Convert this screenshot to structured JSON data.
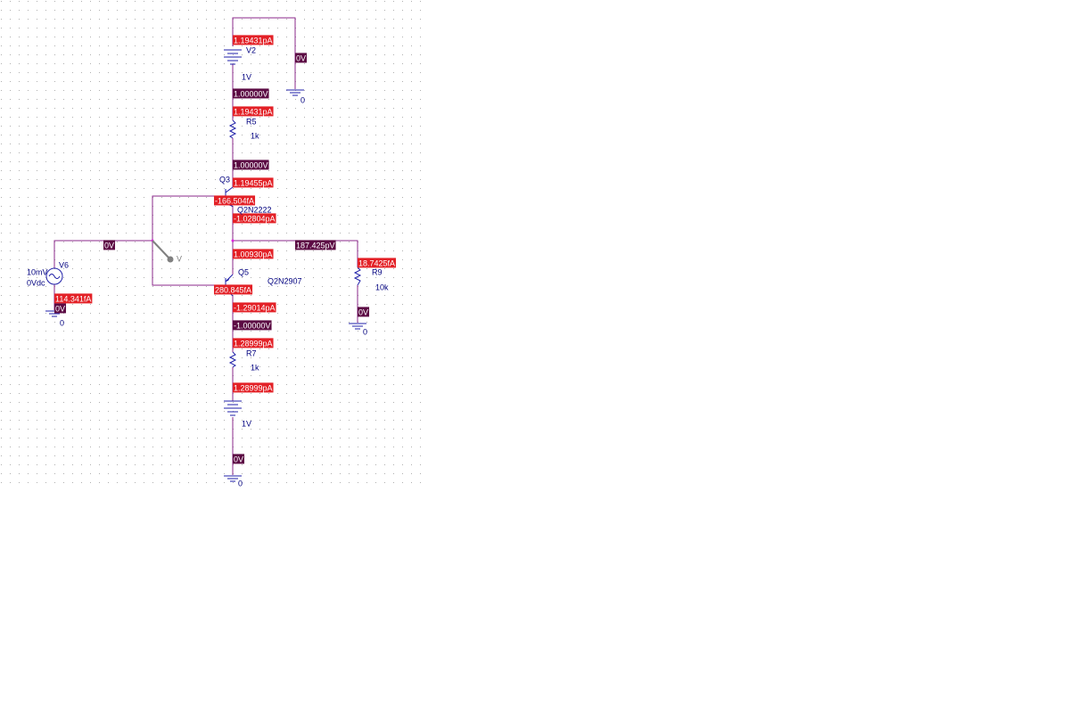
{
  "currents": [
    "1.19431pA",
    "1.19431pA",
    "1.19455pA",
    "-166.504fA",
    "-1.02804pA",
    "1.00930pA",
    "18.7425fA",
    "280.845fA",
    "114.341fA",
    "-1.29014pA",
    "1.28999pA",
    "1.28999pA"
  ],
  "voltages": [
    "0V",
    "1.00000V",
    "1.00000V",
    "0V",
    "187.425pV",
    "0V",
    "0V",
    "-1.00000V",
    "0V"
  ],
  "parts": [
    "V2",
    "1V",
    "0",
    "R5",
    "1k",
    "Q3",
    "Q2N2222",
    "V",
    "R9",
    "10k",
    "Q5",
    "Q2N2907",
    "10mV",
    "V6",
    "0Vdc",
    "0",
    "0",
    "R7",
    "1k",
    "1V",
    "0"
  ]
}
